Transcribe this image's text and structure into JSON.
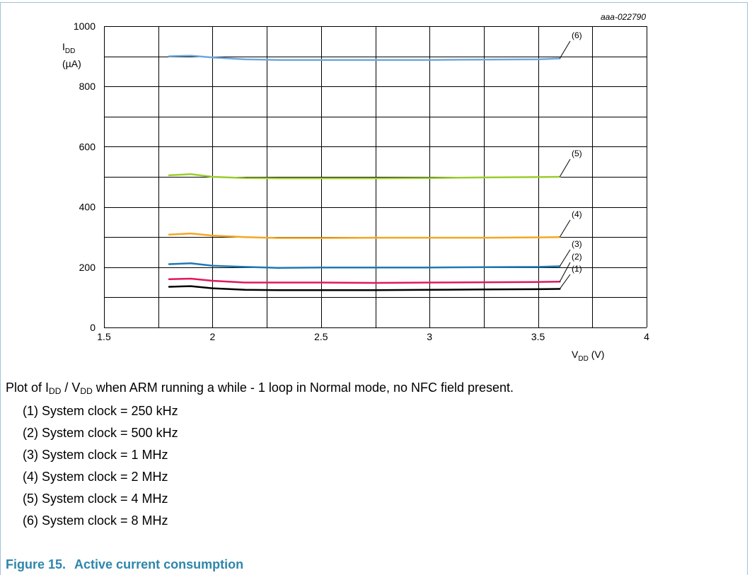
{
  "figure": {
    "id": "aaa-022790",
    "number_label": "Figure 15.",
    "title": "Active current consumption",
    "caption": {
      "prefix": "Plot of ",
      "i_main": "I",
      "i_sub": "DD",
      "sep": " / ",
      "v_main": "V",
      "v_sub": "DD",
      "suffix": " when ARM running a while - 1 loop in Normal mode, no NFC field present."
    },
    "legend": [
      "(1) System clock = 250 kHz",
      "(2) System clock = 500 kHz",
      "(3) System clock = 1 MHz",
      "(4) System clock = 2 MHz",
      "(5) System clock = 4 MHz",
      "(6) System clock = 8 MHz"
    ]
  },
  "chart_data": {
    "type": "line",
    "ylabel_main": "I",
    "ylabel_sub": "DD",
    "ylabel_unit": "(µA)",
    "xlabel_main": "V",
    "xlabel_sub": "DD",
    "xlabel_unit": "(V)",
    "xlim": [
      1.5,
      4
    ],
    "ylim": [
      0,
      1000
    ],
    "xticks": [
      1.5,
      2,
      2.5,
      3,
      3.5,
      4
    ],
    "xtick_labels": [
      "1.5",
      "2",
      "2.5",
      "3",
      "3.5",
      "4"
    ],
    "yticks": [
      0,
      200,
      400,
      600,
      800,
      1000
    ],
    "ytick_labels": [
      "0",
      "200",
      "400",
      "600",
      "800",
      "1000"
    ],
    "grid": true,
    "series": [
      {
        "label": "(1)",
        "color": "#000000",
        "x": [
          1.8,
          1.9,
          2.0,
          2.15,
          2.3,
          2.5,
          2.75,
          3.0,
          3.25,
          3.5,
          3.6
        ],
        "y": [
          135,
          137,
          130,
          125,
          124,
          124,
          124,
          125,
          126,
          127,
          128
        ]
      },
      {
        "label": "(2)",
        "color": "#e0195a",
        "x": [
          1.8,
          1.9,
          2.0,
          2.15,
          2.3,
          2.5,
          2.75,
          3.0,
          3.25,
          3.5,
          3.6
        ],
        "y": [
          160,
          162,
          155,
          149,
          149,
          149,
          148,
          149,
          150,
          151,
          152
        ]
      },
      {
        "label": "(3)",
        "color": "#1f78b4",
        "x": [
          1.8,
          1.9,
          2.0,
          2.15,
          2.3,
          2.5,
          2.75,
          3.0,
          3.25,
          3.5,
          3.6
        ],
        "y": [
          210,
          213,
          205,
          201,
          198,
          199,
          199,
          199,
          200,
          201,
          203
        ]
      },
      {
        "label": "(4)",
        "color": "#f5a623",
        "x": [
          1.8,
          1.9,
          2.0,
          2.15,
          2.3,
          2.5,
          2.75,
          3.0,
          3.25,
          3.5,
          3.6
        ],
        "y": [
          308,
          312,
          305,
          300,
          297,
          297,
          298,
          298,
          298,
          299,
          300
        ]
      },
      {
        "label": "(5)",
        "color": "#9ccc2c",
        "x": [
          1.8,
          1.9,
          2.0,
          2.15,
          2.3,
          2.5,
          2.75,
          3.0,
          3.25,
          3.5,
          3.6
        ],
        "y": [
          505,
          509,
          500,
          496,
          495,
          495,
          495,
          496,
          498,
          499,
          500
        ]
      },
      {
        "label": "(6)",
        "color": "#6ea8dc",
        "x": [
          1.8,
          1.9,
          2.0,
          2.15,
          2.3,
          2.5,
          2.75,
          3.0,
          3.25,
          3.5,
          3.6
        ],
        "y": [
          900,
          902,
          896,
          890,
          888,
          888,
          888,
          888,
          889,
          890,
          893
        ]
      }
    ]
  }
}
